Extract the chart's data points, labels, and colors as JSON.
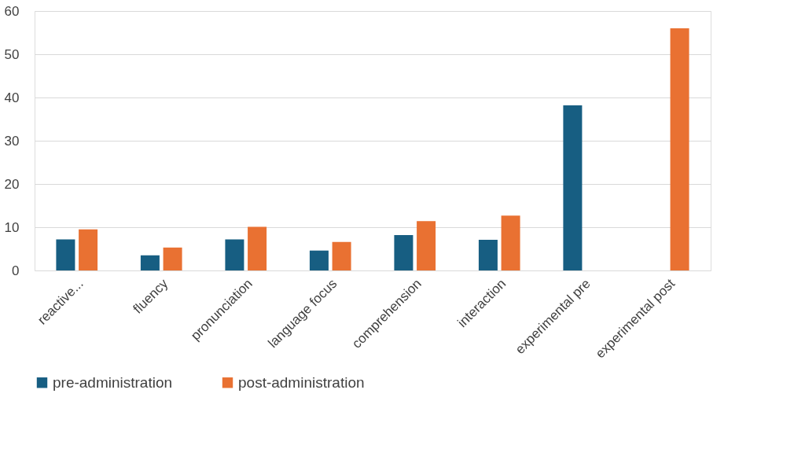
{
  "chart_data": {
    "type": "bar",
    "categories": [
      "reactive...",
      "fluency",
      "pronunciation",
      "language focus",
      "comprehension",
      "interaction",
      "experimental pre",
      "experimental post"
    ],
    "series": [
      {
        "name": "pre-administration",
        "color": "#175e82",
        "values": [
          7.2,
          3.5,
          7.2,
          4.6,
          8.2,
          7.1,
          38.2,
          null
        ]
      },
      {
        "name": "post-administration",
        "color": "#e97132",
        "values": [
          9.5,
          5.3,
          10.1,
          6.6,
          11.4,
          12.7,
          null,
          56.0
        ]
      }
    ],
    "ylim": [
      0,
      60
    ],
    "yticks": [
      0,
      10,
      20,
      30,
      40,
      50,
      60
    ],
    "grid": "y",
    "legend": "bottom"
  }
}
